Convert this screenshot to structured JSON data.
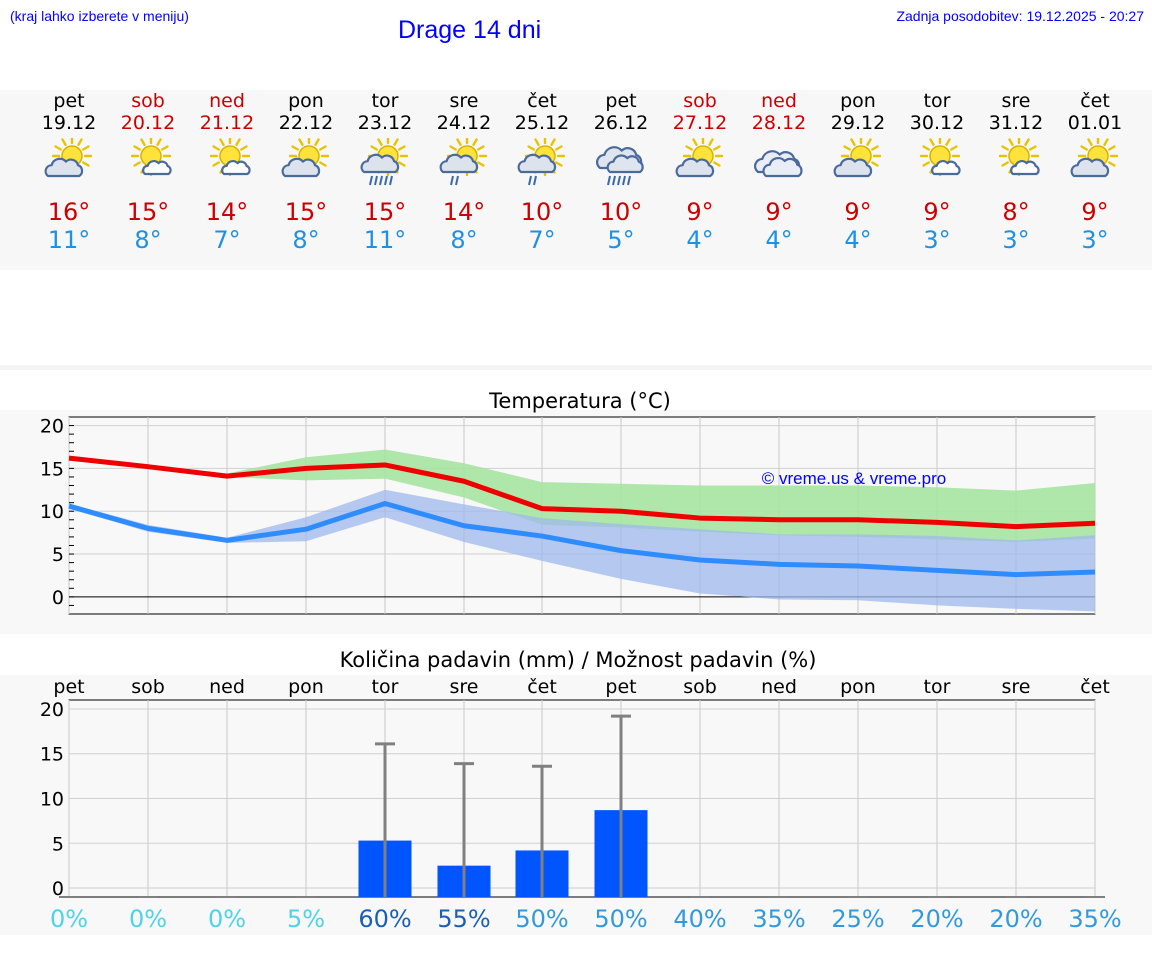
{
  "header": {
    "note": "(kraj lahko izberete v meniju)",
    "title": "Drage 14 dni",
    "updated": "Zadnja posodobitev: 19.12.2025 - 20:27"
  },
  "days": [
    {
      "name": "pet",
      "date": "19.12",
      "weekend": false,
      "icon": "partly-cloudy-icon",
      "tmax": "16°",
      "tmin": "11°"
    },
    {
      "name": "sob",
      "date": "20.12",
      "weekend": true,
      "icon": "mostly-sunny-icon",
      "tmax": "15°",
      "tmin": "8°"
    },
    {
      "name": "ned",
      "date": "21.12",
      "weekend": true,
      "icon": "mostly-sunny-icon",
      "tmax": "14°",
      "tmin": "7°"
    },
    {
      "name": "pon",
      "date": "22.12",
      "weekend": false,
      "icon": "partly-cloudy-icon",
      "tmax": "15°",
      "tmin": "8°"
    },
    {
      "name": "tor",
      "date": "23.12",
      "weekend": false,
      "icon": "sun-showers-icon",
      "tmax": "15°",
      "tmin": "11°"
    },
    {
      "name": "sre",
      "date": "24.12",
      "weekend": false,
      "icon": "sun-light-rain-icon",
      "tmax": "14°",
      "tmin": "8°"
    },
    {
      "name": "čet",
      "date": "25.12",
      "weekend": false,
      "icon": "sun-light-rain-icon",
      "tmax": "10°",
      "tmin": "7°"
    },
    {
      "name": "pet",
      "date": "26.12",
      "weekend": false,
      "icon": "cloud-rain-icon",
      "tmax": "10°",
      "tmin": "5°"
    },
    {
      "name": "sob",
      "date": "27.12",
      "weekend": true,
      "icon": "partly-cloudy-icon",
      "tmax": "9°",
      "tmin": "4°"
    },
    {
      "name": "ned",
      "date": "28.12",
      "weekend": true,
      "icon": "cloudy-icon",
      "tmax": "9°",
      "tmin": "4°"
    },
    {
      "name": "pon",
      "date": "29.12",
      "weekend": false,
      "icon": "partly-cloudy-icon",
      "tmax": "9°",
      "tmin": "4°"
    },
    {
      "name": "tor",
      "date": "30.12",
      "weekend": false,
      "icon": "mostly-sunny-icon",
      "tmax": "9°",
      "tmin": "3°"
    },
    {
      "name": "sre",
      "date": "31.12",
      "weekend": false,
      "icon": "mostly-sunny-icon",
      "tmax": "8°",
      "tmin": "3°"
    },
    {
      "name": "čet",
      "date": "01.01",
      "weekend": false,
      "icon": "partly-cloudy-icon",
      "tmax": "9°",
      "tmin": "3°"
    }
  ],
  "colors": {
    "title_blue": "#0000ff",
    "max_temp": "#cc0000",
    "min_temp": "#1e90e6",
    "max_line": "#ee0000",
    "min_line": "#2f8cff",
    "max_band": "#a6e3a0",
    "min_band": "#9fb9ee",
    "overlap_band": "#7fc3a6",
    "precip_bar": "#0055ff",
    "error_bar": "#808080",
    "pct_light": "#4fd3e8",
    "pct_mid": "#3399dd",
    "pct_dark": "#1a5fb4"
  },
  "chart_data": [
    {
      "type": "line",
      "title": "Temperatura (°C)",
      "xlabel": "",
      "ylabel": "",
      "ylim": [
        -2,
        21
      ],
      "yticks": [
        0,
        5,
        10,
        15,
        20
      ],
      "watermark": "© vreme.us & vreme.pro",
      "x": [
        "19.12",
        "20.12",
        "21.12",
        "22.12",
        "23.12",
        "24.12",
        "25.12",
        "26.12",
        "27.12",
        "28.12",
        "29.12",
        "30.12",
        "31.12",
        "01.01"
      ],
      "series": [
        {
          "name": "max",
          "values": [
            16.2,
            15.2,
            14.1,
            15.0,
            15.4,
            13.5,
            10.3,
            10.0,
            9.2,
            9.0,
            9.0,
            8.7,
            8.2,
            8.6
          ],
          "band_low": [
            16.0,
            15.0,
            14.0,
            13.6,
            13.8,
            11.6,
            8.4,
            8.1,
            7.6,
            7.2,
            7.0,
            6.7,
            6.4,
            6.8
          ],
          "band_high": [
            16.4,
            15.4,
            14.4,
            16.3,
            17.2,
            15.6,
            13.4,
            13.2,
            13.0,
            13.0,
            13.0,
            12.8,
            12.4,
            13.3
          ]
        },
        {
          "name": "min",
          "values": [
            10.6,
            8.0,
            6.6,
            7.9,
            10.9,
            8.3,
            7.1,
            5.4,
            4.3,
            3.8,
            3.6,
            3.1,
            2.6,
            2.9
          ],
          "band_low": [
            10.3,
            7.6,
            6.3,
            6.5,
            9.3,
            6.4,
            4.2,
            2.1,
            0.4,
            -0.3,
            -0.4,
            -1.0,
            -1.4,
            -1.7
          ],
          "band_high": [
            10.9,
            8.4,
            6.9,
            9.3,
            12.5,
            10.8,
            9.2,
            8.5,
            7.9,
            7.3,
            7.3,
            7.1,
            6.6,
            7.2
          ]
        }
      ]
    },
    {
      "type": "bar",
      "title": "Količina padavin (mm) / Možnost padavin (%)",
      "xlabel": "",
      "ylabel": "",
      "ylim": [
        -1,
        21
      ],
      "yticks": [
        0,
        5,
        10,
        15,
        20
      ],
      "categories": [
        "pet",
        "sob",
        "ned",
        "pon",
        "tor",
        "sre",
        "čet",
        "pet",
        "sob",
        "ned",
        "pon",
        "tor",
        "sre",
        "čet"
      ],
      "values": [
        0,
        0,
        0,
        0,
        5.3,
        2.5,
        4.2,
        8.7,
        0,
        0,
        0,
        0,
        0,
        0
      ],
      "error_high": [
        0,
        0,
        0,
        0,
        16.1,
        13.9,
        13.6,
        19.2,
        0,
        0,
        0,
        0,
        0,
        0
      ],
      "probability": [
        "0%",
        "0%",
        "0%",
        "5%",
        "60%",
        "55%",
        "50%",
        "50%",
        "40%",
        "35%",
        "25%",
        "20%",
        "20%",
        "35%"
      ],
      "probability_values": [
        0,
        0,
        0,
        5,
        60,
        55,
        50,
        50,
        40,
        35,
        25,
        20,
        20,
        35
      ]
    }
  ]
}
